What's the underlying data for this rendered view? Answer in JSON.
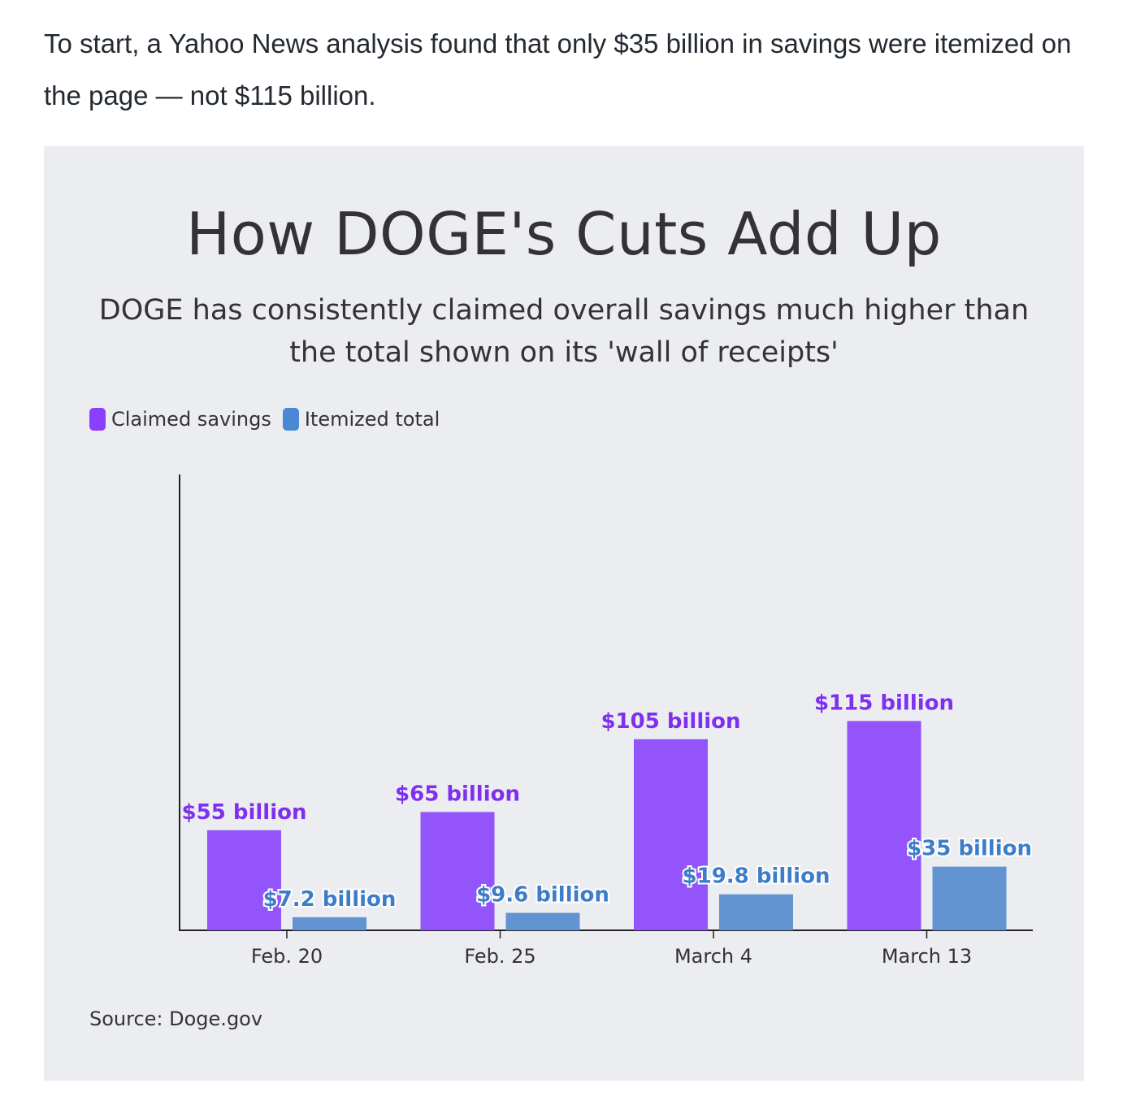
{
  "article": {
    "intro_text": "To start, a Yahoo News analysis found that only $35 billion in savings were itemized on the page — not $115 billion."
  },
  "chart_data": {
    "type": "bar",
    "title": "How DOGE's Cuts Add Up",
    "subtitle": "DOGE has consistently claimed overall savings much higher than the total shown on its 'wall of receipts'",
    "source": "Source: Doge.gov",
    "categories": [
      "Feb. 20",
      "Feb. 25",
      "March 4",
      "March 13"
    ],
    "series": [
      {
        "name": "Claimed savings",
        "color": "#9354fb",
        "label_color": "#7e2ff0",
        "values": [
          55,
          65,
          105,
          115
        ],
        "labels": [
          "$55 billion",
          "$65 billion",
          "$105 billion",
          "$115 billion"
        ]
      },
      {
        "name": "Itemized total",
        "color": "#6294d1",
        "label_color": "#3d7dc8",
        "values": [
          7.2,
          9.6,
          19.8,
          35
        ],
        "labels": [
          "$7.2 billion",
          "$9.6 billion",
          "$19.8 billion",
          "$35 billion"
        ]
      }
    ],
    "ylim": [
      0,
      125
    ],
    "grid": false,
    "legend_position": "top-left",
    "xlabel": "",
    "ylabel": ""
  }
}
